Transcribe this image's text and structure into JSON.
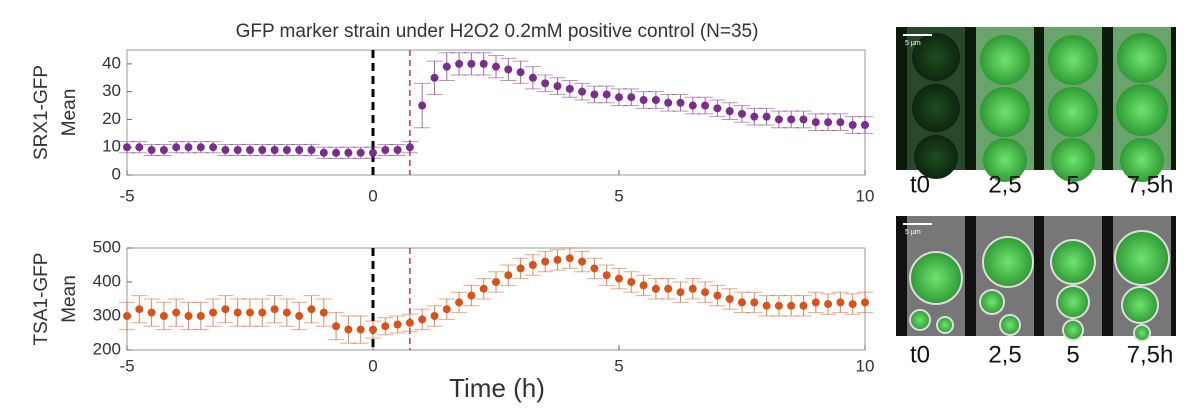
{
  "chart_data": [
    {
      "type": "scatter",
      "title": "GFP marker strain under H2O2 0.2mM positive control (N=35)",
      "ylabel": [
        "SRX1-GFP",
        "Mean"
      ],
      "x": [
        -5,
        -4.75,
        -4.5,
        -4.25,
        -4,
        -3.75,
        -3.5,
        -3.25,
        -3,
        -2.75,
        -2.5,
        -2.25,
        -2,
        -1.75,
        -1.5,
        -1.25,
        -1,
        -0.75,
        -0.5,
        -0.25,
        0,
        0.25,
        0.5,
        0.75,
        1,
        1.25,
        1.5,
        1.75,
        2,
        2.25,
        2.5,
        2.75,
        3,
        3.25,
        3.5,
        3.75,
        4,
        4.25,
        4.5,
        4.75,
        5,
        5.25,
        5.5,
        5.75,
        6,
        6.25,
        6.5,
        6.75,
        7,
        7.25,
        7.5,
        7.75,
        8,
        8.25,
        8.5,
        8.75,
        9,
        9.25,
        9.5,
        9.75,
        10
      ],
      "series": [
        {
          "color": "#7b2d8e",
          "values": [
            10,
            10,
            9,
            9,
            10,
            10,
            10,
            10,
            9,
            9,
            9,
            9,
            9,
            9,
            9,
            9,
            8,
            8,
            8,
            8,
            8,
            9,
            9,
            10,
            25,
            35,
            39,
            40,
            40,
            40,
            39,
            38,
            37,
            35,
            33,
            32,
            31,
            30,
            29,
            29,
            28,
            28,
            27,
            27,
            26,
            26,
            25,
            25,
            24,
            23,
            22,
            21,
            21,
            20,
            20,
            20,
            19,
            19,
            19,
            18,
            18
          ],
          "errors": [
            2,
            2,
            2,
            2,
            2,
            2,
            2,
            2,
            2,
            2,
            2,
            2,
            2,
            2,
            2,
            2,
            2,
            2,
            2,
            2,
            2,
            2,
            2,
            2,
            8,
            6,
            5,
            4,
            4,
            4,
            4,
            4,
            4,
            4,
            3,
            3,
            3,
            3,
            3,
            3,
            3,
            3,
            3,
            3,
            3,
            3,
            3,
            3,
            3,
            3,
            3,
            3,
            3,
            3,
            3,
            3,
            3,
            3,
            3,
            3,
            3
          ]
        }
      ],
      "vlines": [
        {
          "x": 0,
          "color": "#000000"
        },
        {
          "x": 0.75,
          "color": "#cc3344"
        }
      ],
      "xlim": [
        -5,
        10
      ],
      "xticks": [
        -5,
        0,
        5,
        10
      ],
      "ylim": [
        0,
        45
      ],
      "yticks": [
        0,
        10,
        20,
        30,
        40
      ]
    },
    {
      "type": "scatter",
      "ylabel": [
        "TSA1-GFP",
        "Mean"
      ],
      "xlabel": "Time (h)",
      "x": [
        -5,
        -4.75,
        -4.5,
        -4.25,
        -4,
        -3.75,
        -3.5,
        -3.25,
        -3,
        -2.75,
        -2.5,
        -2.25,
        -2,
        -1.75,
        -1.5,
        -1.25,
        -1,
        -0.75,
        -0.5,
        -0.25,
        0,
        0.25,
        0.5,
        0.75,
        1,
        1.25,
        1.5,
        1.75,
        2,
        2.25,
        2.5,
        2.75,
        3,
        3.25,
        3.5,
        3.75,
        4,
        4.25,
        4.5,
        4.75,
        5,
        5.25,
        5.5,
        5.75,
        6,
        6.25,
        6.5,
        6.75,
        7,
        7.25,
        7.5,
        7.75,
        8,
        8.25,
        8.5,
        8.75,
        9,
        9.25,
        9.5,
        9.75,
        10
      ],
      "series": [
        {
          "color": "#d95319",
          "values": [
            300,
            320,
            310,
            300,
            310,
            300,
            300,
            310,
            320,
            310,
            310,
            310,
            320,
            310,
            300,
            320,
            310,
            270,
            260,
            260,
            260,
            270,
            275,
            280,
            290,
            300,
            320,
            340,
            360,
            380,
            400,
            420,
            440,
            450,
            460,
            465,
            470,
            460,
            440,
            420,
            410,
            400,
            390,
            380,
            380,
            370,
            380,
            370,
            360,
            350,
            340,
            340,
            330,
            330,
            330,
            330,
            340,
            335,
            340,
            335,
            340
          ],
          "errors": [
            40,
            40,
            40,
            40,
            40,
            40,
            40,
            40,
            40,
            40,
            40,
            40,
            40,
            40,
            40,
            40,
            40,
            40,
            40,
            40,
            25,
            25,
            25,
            25,
            30,
            30,
            30,
            30,
            30,
            30,
            30,
            30,
            30,
            30,
            30,
            30,
            30,
            30,
            30,
            30,
            30,
            30,
            30,
            30,
            30,
            30,
            30,
            30,
            30,
            30,
            30,
            30,
            30,
            30,
            30,
            30,
            30,
            30,
            30,
            30,
            30
          ]
        }
      ],
      "vlines": [
        {
          "x": 0,
          "color": "#000000"
        },
        {
          "x": 0.75,
          "color": "#cc3344"
        }
      ],
      "xlim": [
        -5,
        10
      ],
      "xticks": [
        -5,
        0,
        5,
        10
      ],
      "ylim": [
        200,
        500
      ],
      "yticks": [
        200,
        300,
        400,
        500
      ]
    }
  ],
  "image_panels": [
    {
      "scale": "5 µm",
      "labels": [
        "t0",
        "2,5",
        "5",
        "7,5h"
      ]
    },
    {
      "scale": "5 µm",
      "labels": [
        "t0",
        "2,5",
        "5",
        "7,5h"
      ]
    }
  ]
}
